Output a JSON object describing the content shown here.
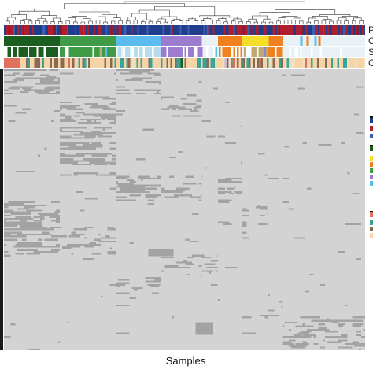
{
  "chart_data": {
    "type": "heatmap",
    "title": "",
    "xlabel": "Samples",
    "ylabel": "",
    "values": [
      0,
      1
    ],
    "colors": {
      "absent": "#d3d3d3",
      "present": "#a3a3a3",
      "background": "#ffffff"
    },
    "annotation_tracks": [
      {
        "label": "P",
        "colors": [
          "#1f3d8c",
          "#b01e2e",
          "#3a5fb0",
          "#7a1f3a"
        ]
      },
      {
        "label": "C",
        "groups": [
          {
            "color": "#1b5e20",
            "frac": 0.155
          },
          {
            "color": "#3f9b45",
            "frac": 0.155
          },
          {
            "color": "#5bbcef",
            "frac": 0.123
          },
          {
            "color": "#9b7ccf",
            "frac": 0.115
          },
          {
            "color": "#e8f2f6",
            "frac": 0.045
          },
          {
            "color": "#f08020",
            "frac": 0.065
          },
          {
            "color": "#f5dd2a",
            "frac": 0.075
          },
          {
            "color": "#f08020",
            "frac": 0.04
          },
          {
            "color": "#e8f2f6",
            "frac": 0.227
          }
        ]
      },
      {
        "label": "S",
        "colors": [
          "#1b5e20",
          "#3f9b45",
          "#ffffff",
          "#5bbcef",
          "#b8dcef",
          "#9b7ccf",
          "#f08020",
          "#f5dd2a",
          "#bcaa72",
          "#e8f2f6"
        ]
      },
      {
        "label": "C",
        "colors": [
          "#e07060",
          "#f5d5a8",
          "#8a6a55",
          "#3ba39a",
          "#f0e0c0",
          "#1b5e20",
          "#f08020",
          "#c8b8d8"
        ]
      }
    ],
    "row_clusters": 7,
    "column_dendrogram": true
  },
  "legend": {
    "swatch_colors": [
      "#1f3d8c",
      "#b01e2e",
      "#3a5fb0",
      "#1b5e20",
      "#f5dd2a",
      "#f08020",
      "#3f9b45",
      "#9b7ccf",
      "#5bbcef",
      "#e07060",
      "#3ba39a",
      "#8a6a55",
      "#f5d5a8"
    ]
  }
}
